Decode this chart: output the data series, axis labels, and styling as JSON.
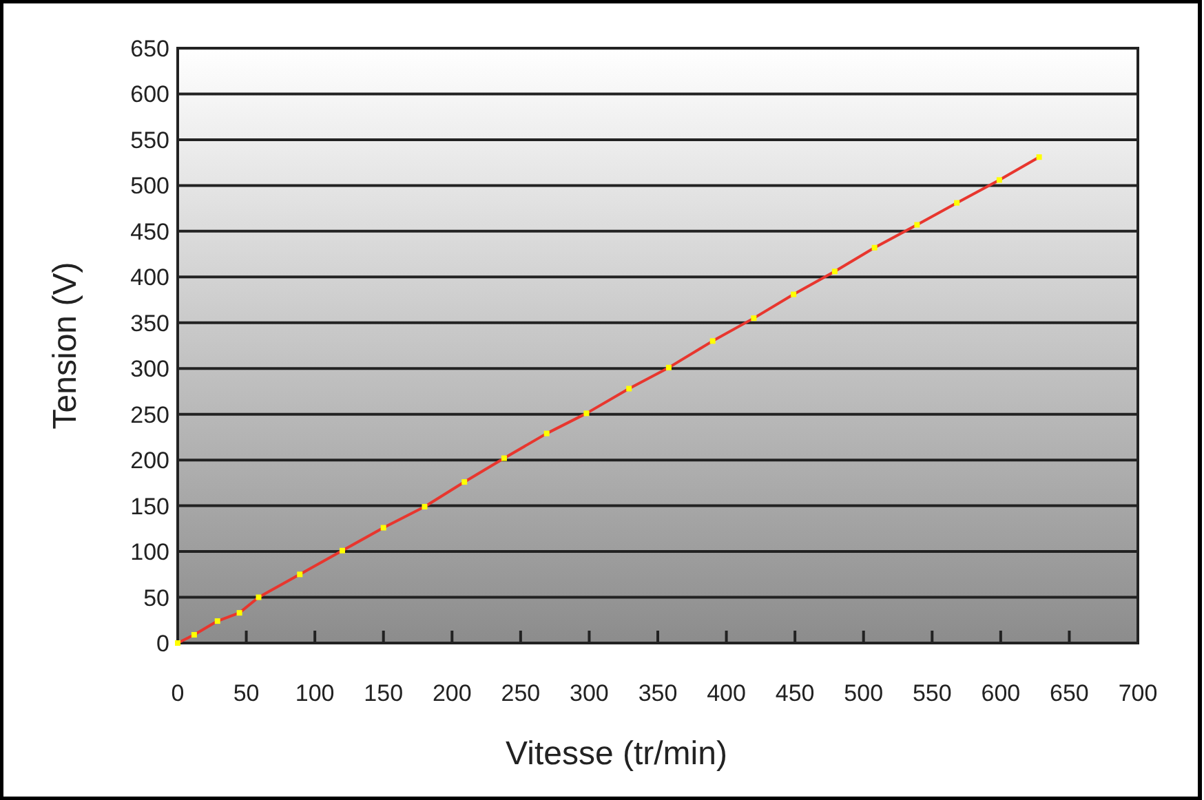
{
  "chart_data": {
    "type": "line",
    "xlabel": "Vitesse (tr/min)",
    "ylabel": "Tension (V)",
    "x": [
      0,
      12,
      29,
      45,
      59,
      89,
      120,
      150,
      180,
      209,
      238,
      269,
      298,
      329,
      358,
      390,
      420,
      449,
      479,
      508,
      539,
      568,
      599,
      628
    ],
    "series": [
      {
        "color": "#e8362e",
        "values": [
          0,
          9,
          24,
          33,
          50,
          75,
          101,
          126,
          149,
          176,
          202,
          229,
          251,
          278,
          301,
          330,
          355,
          381,
          406,
          432,
          457,
          481,
          506,
          531
        ]
      }
    ],
    "xlim": [
      0,
      700
    ],
    "xticks": [
      0,
      50,
      100,
      150,
      200,
      250,
      300,
      350,
      400,
      450,
      500,
      550,
      600,
      650,
      700
    ],
    "ylim": [
      0,
      650
    ],
    "yticks": [
      0,
      50,
      100,
      150,
      200,
      250,
      300,
      350,
      400,
      450,
      500,
      550,
      600,
      650
    ],
    "grid": "y",
    "marker": "square",
    "line_style": "solid"
  }
}
